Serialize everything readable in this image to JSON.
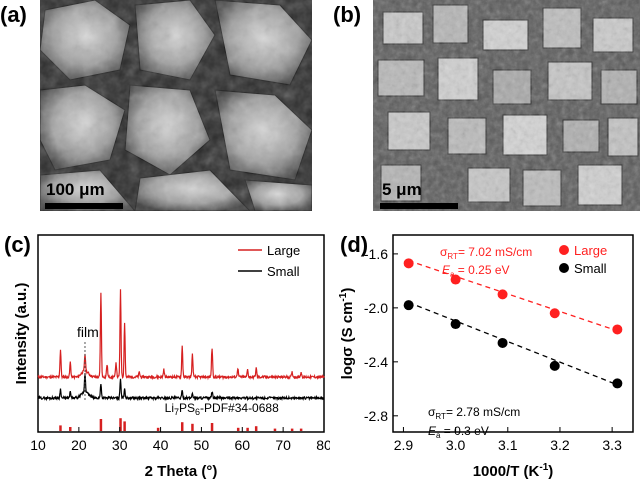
{
  "panels": {
    "a": {
      "label": "(a)",
      "scale_text": "100 μm"
    },
    "b": {
      "label": "(b)",
      "scale_text": "5 μm"
    },
    "c": {
      "label": "(c)"
    },
    "d": {
      "label": "(d)"
    }
  },
  "chart_data": [
    {
      "type": "line",
      "panel": "(c)",
      "xlabel": "2 Theta (°)",
      "ylabel": "Intensity (a.u.)",
      "xlim": [
        10,
        80
      ],
      "xticks": [
        10,
        20,
        30,
        40,
        50,
        60,
        70,
        80
      ],
      "y_ticks_shown": false,
      "legend": {
        "position": "top-right",
        "entries": [
          "Large",
          "Small"
        ]
      },
      "annotations": [
        {
          "text": "film",
          "x": 21.5
        },
        {
          "text": "Li",
          "sub": "7",
          "mid": "PS",
          "sub2": "6",
          "tail": "-PDF#34-0688"
        }
      ],
      "colors": {
        "Large": "#d62020",
        "Small": "#000000",
        "reference": "#d62020"
      },
      "series": [
        {
          "name": "Large",
          "baseline_level": 0.42,
          "peaks": [
            {
              "x": 15.5,
              "h": 0.55
            },
            {
              "x": 17.9,
              "h": 0.3
            },
            {
              "x": 21.5,
              "h": 0.35
            },
            {
              "x": 25.4,
              "h": 1.7
            },
            {
              "x": 26.9,
              "h": 0.25
            },
            {
              "x": 29.1,
              "h": 0.3
            },
            {
              "x": 30.2,
              "h": 1.75
            },
            {
              "x": 31.2,
              "h": 1.1
            },
            {
              "x": 34.8,
              "h": 0.1
            },
            {
              "x": 40.8,
              "h": 0.15
            },
            {
              "x": 45.3,
              "h": 0.62
            },
            {
              "x": 47.8,
              "h": 0.45
            },
            {
              "x": 52.6,
              "h": 0.58
            },
            {
              "x": 58.9,
              "h": 0.18
            },
            {
              "x": 61.3,
              "h": 0.15
            },
            {
              "x": 63.4,
              "h": 0.18
            },
            {
              "x": 72.2,
              "h": 0.1
            },
            {
              "x": 74.4,
              "h": 0.1
            }
          ]
        },
        {
          "name": "Small",
          "baseline_level": 0.0,
          "peaks": [
            {
              "x": 15.5,
              "h": 0.18
            },
            {
              "x": 17.9,
              "h": 0.12
            },
            {
              "x": 21.5,
              "h": 0.38
            },
            {
              "x": 25.4,
              "h": 0.3
            },
            {
              "x": 30.2,
              "h": 0.4
            },
            {
              "x": 31.2,
              "h": 0.2
            },
            {
              "x": 45.3,
              "h": 0.14
            },
            {
              "x": 47.8,
              "h": 0.1
            },
            {
              "x": 52.6,
              "h": 0.12
            }
          ]
        }
      ],
      "reference_peaks": [
        {
          "x": 15.5,
          "h": 0.35
        },
        {
          "x": 17.9,
          "h": 0.25
        },
        {
          "x": 25.4,
          "h": 0.75
        },
        {
          "x": 30.2,
          "h": 0.8
        },
        {
          "x": 31.2,
          "h": 0.6
        },
        {
          "x": 39.4,
          "h": 0.2
        },
        {
          "x": 45.3,
          "h": 0.55
        },
        {
          "x": 47.8,
          "h": 0.45
        },
        {
          "x": 52.6,
          "h": 0.5
        },
        {
          "x": 59.0,
          "h": 0.2
        },
        {
          "x": 61.3,
          "h": 0.2
        },
        {
          "x": 63.4,
          "h": 0.3
        },
        {
          "x": 68.0,
          "h": 0.15
        },
        {
          "x": 72.2,
          "h": 0.15
        },
        {
          "x": 74.4,
          "h": 0.15
        }
      ]
    },
    {
      "type": "scatter",
      "panel": "(d)",
      "xlabel": "1000/T (K",
      "xlabel_sup": "-1",
      "xlabel_tail": ")",
      "ylabel": "logσ (S cm",
      "ylabel_sup": "-1",
      "ylabel_tail": ")",
      "xlim": [
        2.88,
        3.34
      ],
      "ylim": [
        -2.92,
        -1.46
      ],
      "xticks": [
        2.9,
        3.0,
        3.1,
        3.2,
        3.3
      ],
      "xtick_labels": [
        "2.9",
        "3.0",
        "3.1",
        "3.2",
        "3.3"
      ],
      "yticks": [
        -1.6,
        -2.0,
        -2.4,
        -2.8
      ],
      "ytick_labels": [
        "-1.6",
        "-2.0",
        "-2.4",
        "-2.8"
      ],
      "legend": {
        "position": "top-right",
        "entries": [
          "Large",
          "Small"
        ]
      },
      "colors": {
        "Large": "#ff2020",
        "Small": "#000000"
      },
      "series": [
        {
          "name": "Large",
          "x": [
            2.91,
            3.0,
            3.09,
            3.19,
            3.31
          ],
          "y": [
            -1.67,
            -1.79,
            -1.9,
            -2.04,
            -2.16
          ],
          "fit": [
            [
              2.91,
              -1.65
            ],
            [
              3.31,
              -2.17
            ]
          ]
        },
        {
          "name": "Small",
          "x": [
            2.91,
            3.0,
            3.09,
            3.19,
            3.31
          ],
          "y": [
            -1.98,
            -2.12,
            -2.26,
            -2.43,
            -2.56
          ],
          "fit": [
            [
              2.91,
              -1.96
            ],
            [
              3.31,
              -2.57
            ]
          ]
        }
      ],
      "annotations": {
        "large_sigma": {
          "pre": "σ",
          "sub": "RT",
          "post": "= 7.02 mS/cm"
        },
        "large_ea": {
          "pre": "E",
          "sub": "a",
          "post": " = 0.25 eV"
        },
        "small_sigma": {
          "pre": "σ",
          "sub": "RT",
          "post": "= 2.78 mS/cm"
        },
        "small_ea": {
          "pre": "E",
          "sub": "a",
          "post": " = 0.3 eV"
        }
      }
    }
  ]
}
